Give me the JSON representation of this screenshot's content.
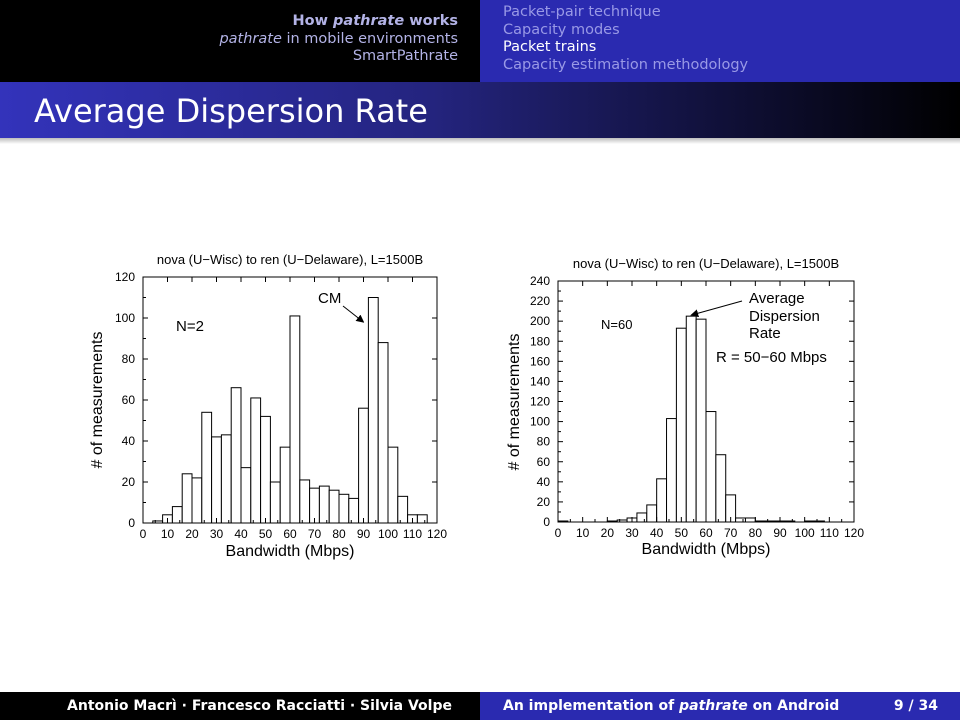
{
  "header": {
    "sections": [
      "How pathrate works",
      "pathrate in mobile environments",
      "SmartPathrate"
    ],
    "subsections": [
      "Packet-pair technique",
      "Capacity modes",
      "Packet trains",
      "Capacity estimation methodology"
    ],
    "active_subsection": 2
  },
  "slide": {
    "title": "Average Dispersion Rate"
  },
  "footer": {
    "authors": "Antonio Macrì · Francesco Racciatti · Silvia Volpe",
    "talk_title": "An implementation of pathrate on Android",
    "page": "9 / 34"
  },
  "colors": {
    "header_blue": "#2a2ab0",
    "header_black": "#000000",
    "bars": "#ffffff",
    "bar_stroke": "#000000"
  },
  "chart_data": [
    {
      "type": "bar",
      "title": "nova (U−Wisc) to ren (U−Delaware), L=1500B",
      "xlabel": "Bandwidth (Mbps)",
      "ylabel": "# of measurements",
      "xlim": [
        0,
        120
      ],
      "ylim": [
        0,
        120
      ],
      "xticks": [
        0,
        10,
        20,
        30,
        40,
        50,
        60,
        70,
        80,
        90,
        100,
        110,
        120
      ],
      "yticks": [
        0,
        20,
        40,
        60,
        80,
        100,
        120
      ],
      "bin_width": 4,
      "bin_starts": [
        0,
        4,
        8,
        12,
        16,
        20,
        24,
        28,
        32,
        36,
        40,
        44,
        48,
        52,
        56,
        60,
        64,
        68,
        72,
        76,
        80,
        84,
        88,
        92,
        96,
        100,
        104,
        108,
        112
      ],
      "values": [
        0,
        1,
        4,
        8,
        24,
        22,
        54,
        42,
        43,
        66,
        27,
        61,
        52,
        20,
        37,
        101,
        21,
        17,
        18,
        16,
        14,
        12,
        56,
        110,
        88,
        37,
        13,
        4,
        4
      ],
      "annotations": [
        {
          "text": "N=2"
        },
        {
          "text": "CM",
          "arrow_to": [
            90,
            98
          ]
        }
      ]
    },
    {
      "type": "bar",
      "title": "nova (U−Wisc) to ren (U−Delaware), L=1500B",
      "xlabel": "Bandwidth (Mbps)",
      "ylabel": "# of measurements",
      "xlim": [
        0,
        120
      ],
      "ylim": [
        0,
        240
      ],
      "xticks": [
        0,
        10,
        20,
        30,
        40,
        50,
        60,
        70,
        80,
        90,
        100,
        110,
        120
      ],
      "yticks": [
        0,
        20,
        40,
        60,
        80,
        100,
        120,
        140,
        160,
        180,
        200,
        220,
        240
      ],
      "bin_width": 4,
      "bin_starts": [
        0,
        4,
        8,
        12,
        16,
        20,
        24,
        28,
        32,
        36,
        40,
        44,
        48,
        52,
        56,
        60,
        64,
        68,
        72,
        76,
        80,
        84,
        88,
        92,
        96,
        100,
        104,
        108,
        112,
        116
      ],
      "values": [
        1,
        0,
        0,
        0,
        0,
        1,
        2,
        4,
        9,
        17,
        43,
        103,
        193,
        205,
        202,
        110,
        67,
        27,
        4,
        4,
        1,
        1,
        1,
        1,
        0,
        1,
        1,
        0,
        0,
        0
      ],
      "annotations": [
        {
          "text": "N=60"
        },
        {
          "text": "Average",
          "arrow_to": [
            54,
            206
          ]
        },
        {
          "text": "Dispersion"
        },
        {
          "text": "Rate"
        },
        {
          "text": "R = 50−60 Mbps"
        }
      ]
    }
  ]
}
